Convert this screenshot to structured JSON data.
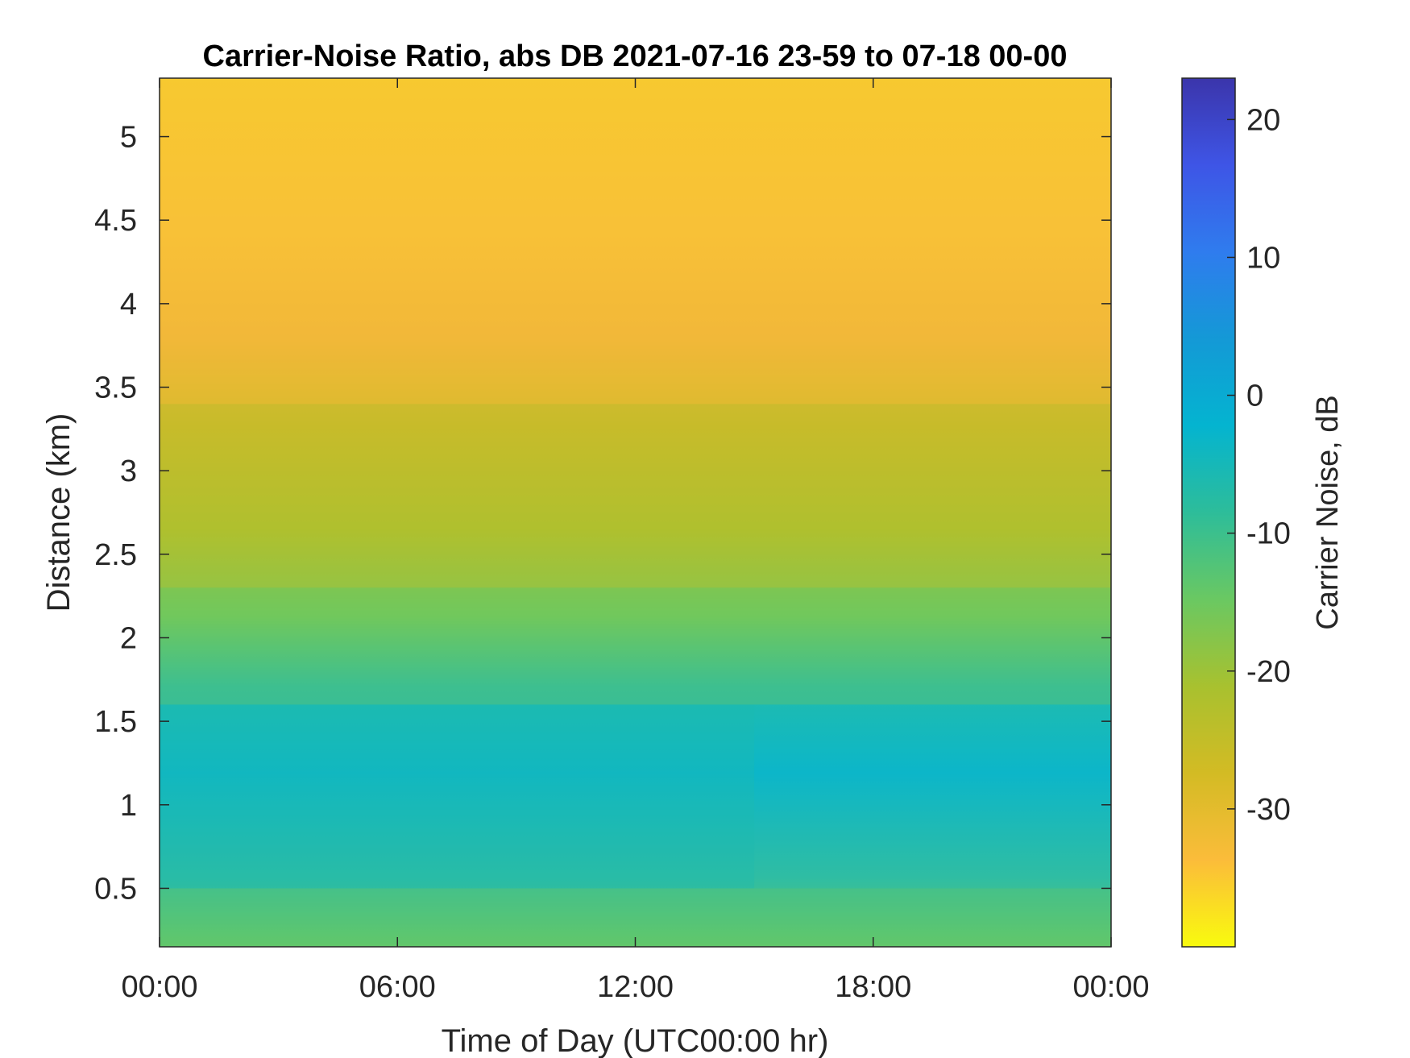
{
  "chart_data": {
    "type": "heatmap",
    "title": "Carrier-Noise Ratio, abs DB 2021-07-16 23-59 to 07-18 00-00",
    "xlabel": "Time of Day (UTC00:00 hr)",
    "ylabel": "Distance (km)",
    "xlim": [
      0,
      24
    ],
    "ylim": [
      0.15,
      5.35
    ],
    "x_ticks": [
      0,
      6,
      12,
      18,
      24
    ],
    "x_tick_labels": [
      "00:00",
      "06:00",
      "12:00",
      "18:00",
      "00:00"
    ],
    "y_ticks": [
      0.5,
      1,
      1.5,
      2,
      2.5,
      3,
      3.5,
      4,
      4.5,
      5
    ],
    "y_tick_labels": [
      "0.5",
      "1",
      "1.5",
      "2",
      "2.5",
      "3",
      "3.5",
      "4",
      "4.5",
      "5"
    ],
    "colorbar": {
      "label": "Carrier Noise, dB",
      "range": [
        -40,
        23
      ],
      "ticks": [
        20,
        10,
        0,
        -10,
        -20,
        -30
      ],
      "tick_labels": [
        "20",
        "10",
        "0",
        "-10",
        "-20",
        "-30"
      ],
      "colormap": "parula-reversed",
      "colors": [
        "#f9fb0e",
        "#fbbc3a",
        "#d3bb24",
        "#a8c12f",
        "#6ac862",
        "#2dbd9a",
        "#04b4d0",
        "#1499d6",
        "#2f7cee",
        "#3e55e6",
        "#3b35ab"
      ]
    },
    "grid": false,
    "description_of_field": [
      {
        "time_range": [
          0,
          24
        ],
        "distance_range": [
          0.15,
          0.5
        ],
        "approx_db": -14
      },
      {
        "time_range": [
          0,
          15
        ],
        "distance_range": [
          0.5,
          1.6
        ],
        "approx_db": -6
      },
      {
        "time_range": [
          0,
          24
        ],
        "distance_range": [
          1.6,
          2.3
        ],
        "approx_db": -16
      },
      {
        "time_range": [
          0,
          24
        ],
        "distance_range": [
          2.3,
          3.4
        ],
        "approx_db": -24
      },
      {
        "time_range": [
          0,
          24
        ],
        "distance_range": [
          3.4,
          5.35
        ],
        "approx_db": -32
      }
    ]
  }
}
